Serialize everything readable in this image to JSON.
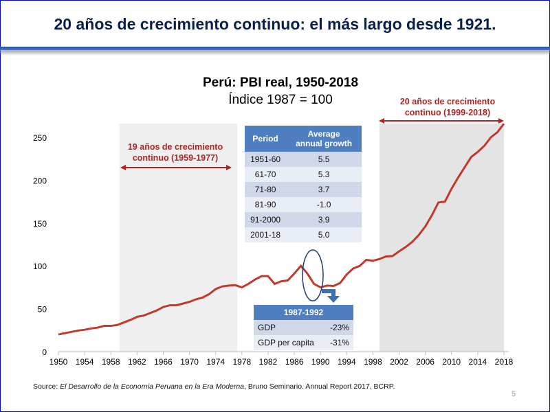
{
  "slide": {
    "title": "20 años de crecimiento continuo: el más largo desde 1921.",
    "page_number": "5",
    "source_prefix": "Source: ",
    "source_italic": "El Desarrollo de la Economía Peruana en la Era Moderna",
    "source_suffix": ", Bruno Seminario. Annual Report 2017, BCRP."
  },
  "chart_data": {
    "type": "line",
    "title": "Perú: PBI real, 1950-2018",
    "subtitle": "Índice 1987 = 100",
    "xlim": [
      1950,
      2018
    ],
    "ylim": [
      0,
      250
    ],
    "x_ticks": [
      1950,
      1954,
      1958,
      1962,
      1966,
      1970,
      1974,
      1978,
      1982,
      1986,
      1990,
      1994,
      1998,
      2002,
      2006,
      2010,
      2014,
      2018
    ],
    "y_ticks": [
      0,
      50,
      100,
      150,
      200,
      250
    ],
    "line_color": "#c0392b",
    "x": [
      1950,
      1951,
      1952,
      1953,
      1954,
      1955,
      1956,
      1957,
      1958,
      1959,
      1960,
      1961,
      1962,
      1963,
      1964,
      1965,
      1966,
      1967,
      1968,
      1969,
      1970,
      1971,
      1972,
      1973,
      1974,
      1975,
      1976,
      1977,
      1978,
      1979,
      1980,
      1981,
      1982,
      1983,
      1984,
      1985,
      1986,
      1987,
      1988,
      1989,
      1990,
      1991,
      1992,
      1993,
      1994,
      1995,
      1996,
      1997,
      1998,
      1999,
      2000,
      2001,
      2002,
      2003,
      2004,
      2005,
      2006,
      2007,
      2008,
      2009,
      2010,
      2011,
      2012,
      2013,
      2014,
      2015,
      2016,
      2017,
      2018
    ],
    "values": [
      20,
      21.5,
      23,
      24.5,
      25.5,
      27,
      28,
      30,
      30,
      31,
      34,
      37,
      40.5,
      42,
      45,
      48,
      52,
      54,
      54,
      56,
      58,
      61,
      63,
      67,
      73,
      76,
      77,
      77.5,
      75,
      79,
      84,
      88,
      88,
      79,
      82,
      83,
      91,
      100,
      91,
      79,
      75,
      77,
      76.5,
      80,
      90,
      97,
      100,
      107,
      106,
      108,
      111,
      111.5,
      117,
      122,
      128,
      136,
      146,
      159,
      174,
      175,
      190,
      203,
      215,
      227,
      233,
      240,
      250,
      256,
      266
    ],
    "shaded_periods": [
      {
        "from": 1959,
        "to": 1977,
        "label": "19 años de crecimiento continuo (1959-1977)",
        "label_lines": [
          "19 años de crecimiento",
          "continuo (1959-1977)"
        ]
      },
      {
        "from": 1999,
        "to": 2018,
        "label": "20 años de crecimiento continuo (1999-2018)",
        "label_lines": [
          "20 años de crecimiento",
          "continuo (1999-2018)"
        ]
      }
    ],
    "annotation_color": "#b22222",
    "growth_table": {
      "headers": [
        "Period",
        "Average annual growth"
      ],
      "header_lines": [
        "Average",
        "annual growth"
      ],
      "rows": [
        [
          "1951-60",
          "5.5"
        ],
        [
          "61-70",
          "5.3"
        ],
        [
          "71-80",
          "3.7"
        ],
        [
          "81-90",
          "-1.0"
        ],
        [
          "91-2000",
          "3.9"
        ],
        [
          "2001-18",
          "5.0"
        ]
      ]
    },
    "drop_table": {
      "header": "1987-1992",
      "rows": [
        [
          "GDP",
          "-23%"
        ],
        [
          "GDP per capita",
          "-31%"
        ]
      ]
    }
  }
}
